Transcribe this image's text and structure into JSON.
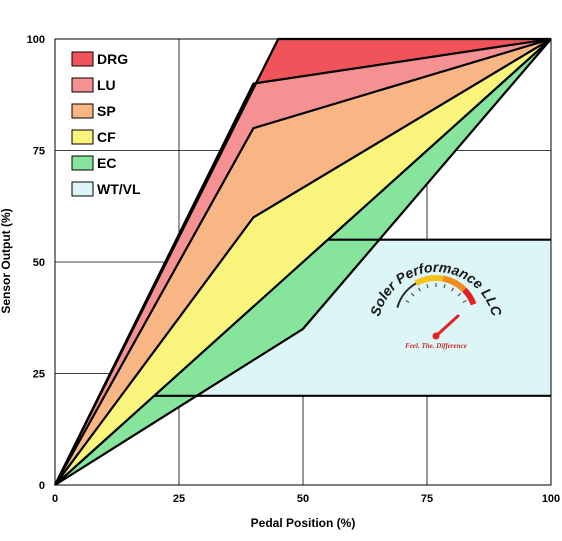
{
  "chart_data": {
    "type": "area",
    "xlabel": "Pedal Position (%)",
    "ylabel": "Sensor Output (%)",
    "xlim": [
      0,
      100
    ],
    "ylim": [
      0,
      100
    ],
    "xticks": [
      "0",
      "25",
      "50",
      "75",
      "100"
    ],
    "yticks": [
      "0",
      "25",
      "50",
      "75",
      "100"
    ],
    "grid": true,
    "legend_position": "top-left",
    "series": [
      {
        "name": "DRG",
        "color": "#f0545a",
        "upper": [
          [
            0,
            0
          ],
          [
            45,
            100
          ],
          [
            100,
            100
          ]
        ],
        "lower": [
          [
            0,
            0
          ],
          [
            40,
            90
          ],
          [
            100,
            100
          ]
        ]
      },
      {
        "name": "LU",
        "color": "#f59192",
        "upper": [
          [
            0,
            0
          ],
          [
            40,
            90
          ],
          [
            100,
            100
          ]
        ],
        "lower": [
          [
            0,
            0
          ],
          [
            40,
            80
          ],
          [
            100,
            100
          ]
        ]
      },
      {
        "name": "SP",
        "color": "#f8b684",
        "upper": [
          [
            0,
            0
          ],
          [
            40,
            80
          ],
          [
            100,
            100
          ]
        ],
        "lower": [
          [
            0,
            0
          ],
          [
            40,
            60
          ],
          [
            100,
            100
          ]
        ]
      },
      {
        "name": "CF",
        "color": "#f8f47c",
        "upper": [
          [
            0,
            0
          ],
          [
            40,
            60
          ],
          [
            100,
            100
          ]
        ],
        "lower": [
          [
            0,
            0
          ],
          [
            100,
            100
          ]
        ]
      },
      {
        "name": "EC",
        "color": "#86e49c",
        "upper": [
          [
            0,
            0
          ],
          [
            100,
            100
          ]
        ],
        "lower": [
          [
            0,
            0
          ],
          [
            50,
            35
          ],
          [
            100,
            100
          ]
        ]
      },
      {
        "name": "WT/VL",
        "color": "#dcf6f7",
        "upper": [
          [
            55,
            55
          ],
          [
            100,
            55
          ]
        ],
        "lower": [
          [
            20,
            20
          ],
          [
            100,
            20
          ]
        ]
      }
    ],
    "boundary_lines": [
      [
        [
          0,
          0
        ],
        [
          45,
          100
        ],
        [
          100,
          100
        ]
      ],
      [
        [
          0,
          0
        ],
        [
          40,
          90
        ],
        [
          100,
          100
        ]
      ],
      [
        [
          0,
          0
        ],
        [
          40,
          80
        ],
        [
          100,
          100
        ]
      ],
      [
        [
          0,
          0
        ],
        [
          40,
          60
        ],
        [
          100,
          100
        ]
      ],
      [
        [
          0,
          0
        ],
        [
          100,
          100
        ]
      ],
      [
        [
          0,
          0
        ],
        [
          50,
          35
        ],
        [
          100,
          100
        ]
      ],
      [
        [
          20,
          20
        ],
        [
          100,
          20
        ]
      ],
      [
        [
          55,
          55
        ],
        [
          100,
          55
        ]
      ]
    ]
  },
  "logo": {
    "name": "Soler Performance LLC",
    "tagline": "Feel. The. Difference",
    "gauge_colors": [
      "#2a2a2a",
      "#f4c21b",
      "#f08a1c",
      "#e02424"
    ]
  }
}
